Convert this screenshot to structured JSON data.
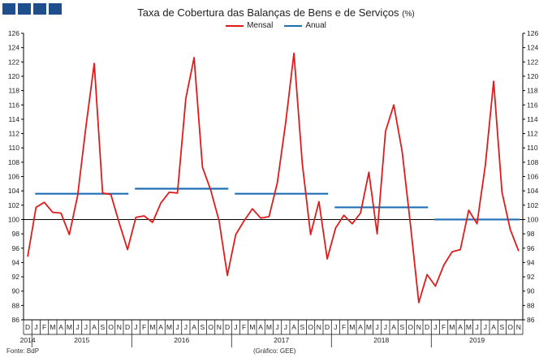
{
  "header": {
    "title": "Taxa de Cobertura das Balanças de Bens e de Serviços",
    "unit": "(%)"
  },
  "footer": {
    "source": "Fonte: BdP",
    "credit": "(Gráfico: GEE)"
  },
  "colors": {
    "monthly": "#e01b1b",
    "annual": "#1f6fb5",
    "reference": "#000000",
    "logo": "#1f4e8c"
  },
  "chart_data": {
    "type": "line",
    "title": "Taxa de Cobertura das Balanças de Bens e de Serviços",
    "ylim": [
      86,
      126
    ],
    "yticks": [
      86,
      88,
      90,
      92,
      94,
      96,
      98,
      100,
      102,
      104,
      106,
      108,
      110,
      112,
      114,
      116,
      118,
      120,
      122,
      124,
      126
    ],
    "reference_line": 100,
    "legend_position": "top-center",
    "grid": false,
    "month_labels": [
      "D",
      "J",
      "F",
      "M",
      "A",
      "M",
      "J",
      "J",
      "A",
      "S",
      "O",
      "N",
      "D",
      "J",
      "F",
      "M",
      "A",
      "M",
      "J",
      "J",
      "A",
      "S",
      "O",
      "N",
      "D",
      "J",
      "F",
      "M",
      "A",
      "M",
      "J",
      "J",
      "A",
      "S",
      "O",
      "N",
      "D",
      "J",
      "F",
      "M",
      "A",
      "M",
      "J",
      "J",
      "A",
      "S",
      "O",
      "N",
      "D",
      "J",
      "F",
      "M",
      "A",
      "M",
      "J",
      "J",
      "A",
      "S",
      "O",
      "N"
    ],
    "year_labels": [
      {
        "label": "2014",
        "start": 0,
        "end": 0
      },
      {
        "label": "2015",
        "start": 1,
        "end": 12
      },
      {
        "label": "2016",
        "start": 13,
        "end": 24
      },
      {
        "label": "2017",
        "start": 25,
        "end": 36
      },
      {
        "label": "2018",
        "start": 37,
        "end": 48
      },
      {
        "label": "2019",
        "start": 49,
        "end": 59
      }
    ],
    "series": [
      {
        "name": "Mensal",
        "values": [
          94.8,
          101.7,
          102.4,
          101.0,
          100.9,
          97.9,
          103.3,
          113.0,
          121.8,
          103.7,
          103.5,
          99.5,
          95.8,
          100.3,
          100.5,
          99.6,
          102.3,
          103.8,
          103.7,
          116.9,
          122.6,
          107.3,
          104.1,
          99.8,
          92.2,
          97.9,
          99.8,
          101.5,
          100.2,
          100.4,
          105.1,
          113.5,
          123.2,
          107.8,
          97.9,
          102.5,
          94.5,
          98.8,
          100.6,
          99.4,
          100.9,
          106.6,
          98.0,
          112.3,
          116.0,
          109.5,
          99.3,
          88.4,
          92.3,
          90.7,
          93.6,
          95.5,
          95.8,
          101.3,
          99.4,
          107.6,
          119.3,
          103.8,
          98.6,
          95.6
        ]
      },
      {
        "name": "Anual",
        "segments": [
          {
            "year": "2015",
            "value": 103.6
          },
          {
            "year": "2016",
            "value": 104.3
          },
          {
            "year": "2017",
            "value": 103.6
          },
          {
            "year": "2018",
            "value": 101.7
          },
          {
            "year": "2019",
            "value": 100.0
          }
        ]
      }
    ]
  }
}
